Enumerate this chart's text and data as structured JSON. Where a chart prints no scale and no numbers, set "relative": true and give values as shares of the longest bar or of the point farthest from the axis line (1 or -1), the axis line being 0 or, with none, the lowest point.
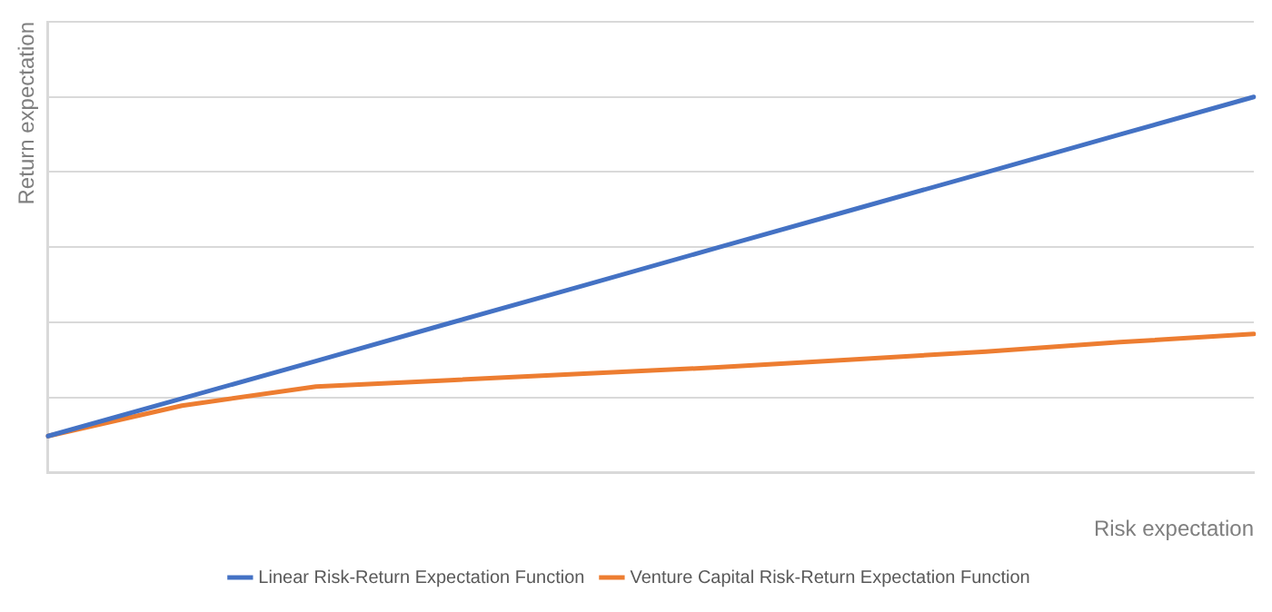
{
  "chart_data": {
    "type": "line",
    "relative": true,
    "xlabel": "Risk expectation",
    "ylabel": "Return expectation",
    "categories": [
      null,
      null,
      null,
      null,
      null,
      null,
      null,
      null,
      null,
      null
    ],
    "series": [
      {
        "name": "Linear Risk-Return Expectation Function",
        "color": "#4472c4",
        "values": [
          0.097,
          0.197,
          0.297,
          0.398,
          0.498,
          0.599,
          0.699,
          0.799,
          0.9,
          1.0
        ]
      },
      {
        "name": "Venture Capital Risk-Return Expectation Function",
        "color": "#ed7d31",
        "values": [
          0.097,
          0.178,
          0.229,
          0.246,
          0.263,
          0.28,
          0.301,
          0.322,
          0.347,
          0.369
        ]
      }
    ],
    "grid": "y",
    "legend": "bottom",
    "marker": "none",
    "line_style": "solid"
  }
}
